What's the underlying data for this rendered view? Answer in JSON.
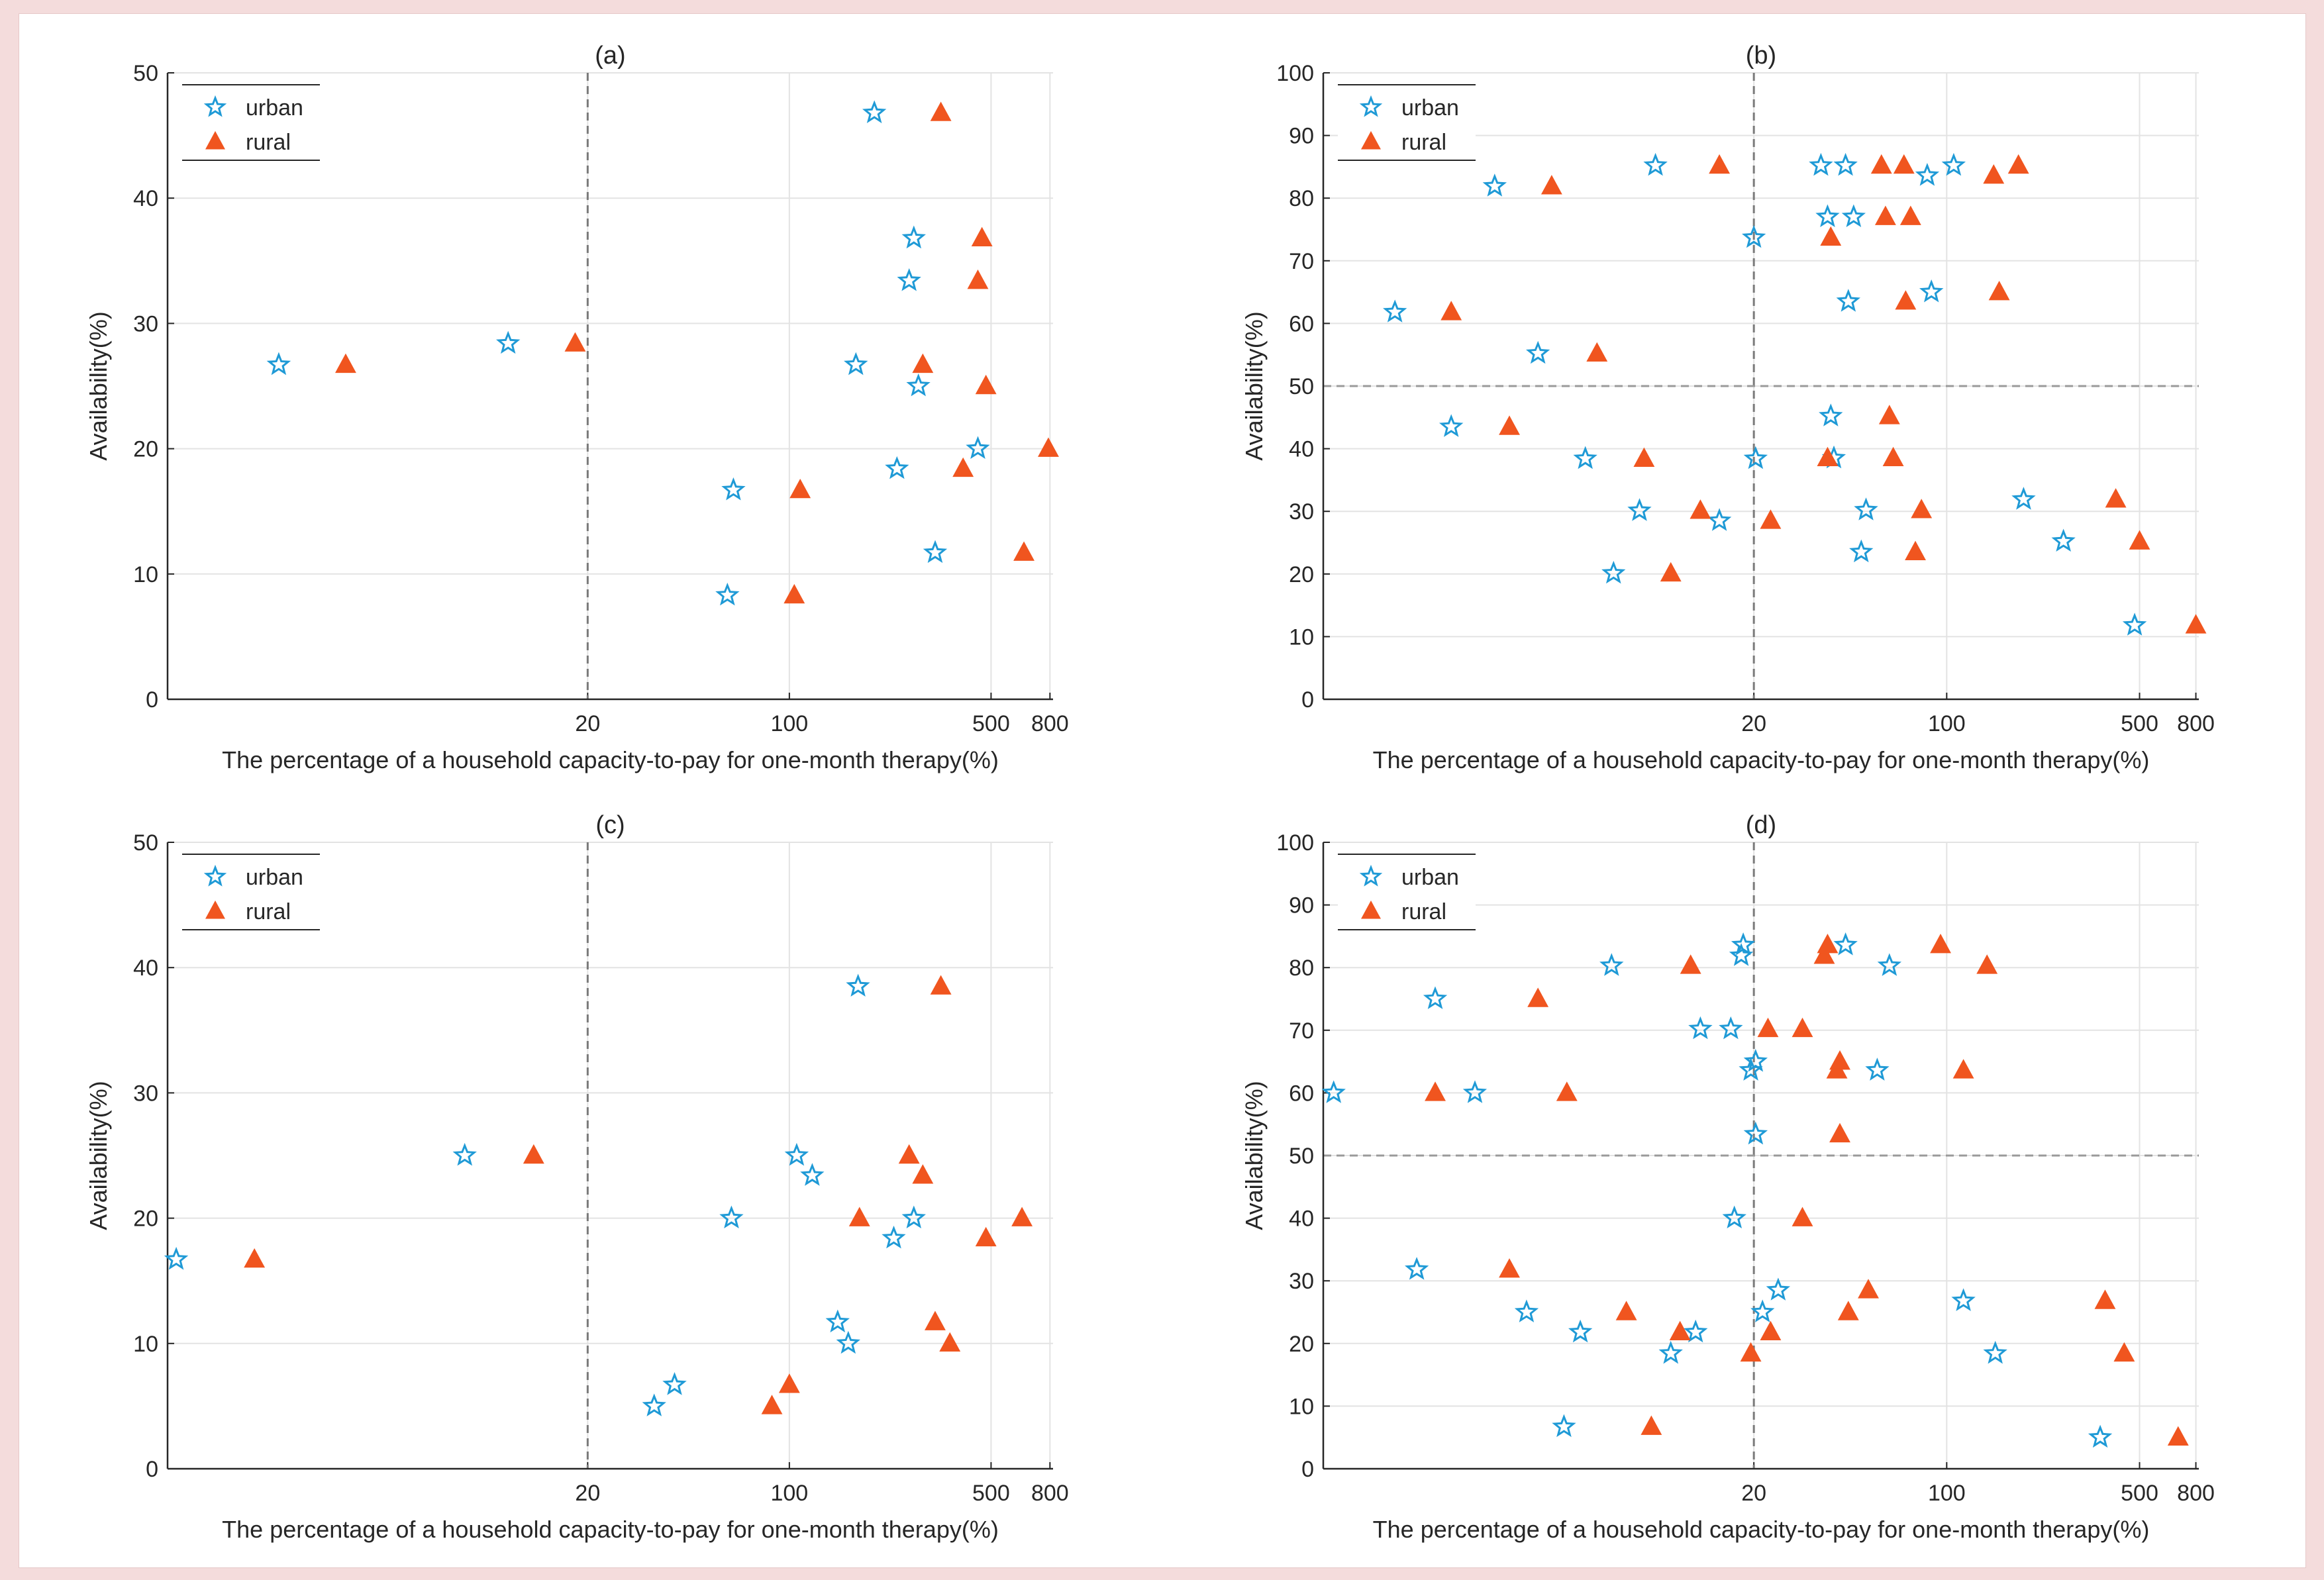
{
  "colors": {
    "urban": "#1f9ad6",
    "rural": "#f0551f",
    "grid": "#e3e3e3",
    "axis": "#262626",
    "background": "#f4dcdc"
  },
  "chart_data": [
    {
      "type": "scatter",
      "title": "(a)",
      "xlabel": "The percentage of a household capacity-to-pay for one-month therapy(%)",
      "ylabel": "Availability(%)",
      "xscale": "log",
      "xlim": [
        0.7,
        820
      ],
      "ylim": [
        0,
        50
      ],
      "xticks": [
        20,
        100,
        500,
        800
      ],
      "yticks": [
        0,
        10,
        20,
        30,
        40,
        50
      ],
      "vline": 20,
      "hline": null,
      "legend": {
        "position": "top-left",
        "entries": [
          "urban",
          "rural"
        ]
      },
      "series": [
        {
          "name": "urban",
          "marker": "star",
          "points": [
            [
              1.7,
              26.7
            ],
            [
              10.6,
              28.4
            ],
            [
              64,
              16.7
            ],
            [
              61,
              8.3
            ],
            [
              170,
              26.7
            ],
            [
              197,
              46.8
            ],
            [
              270,
              36.8
            ],
            [
              260,
              33.4
            ],
            [
              280,
              25.0
            ],
            [
              236,
              18.4
            ],
            [
              450,
              20.0
            ],
            [
              320,
              11.7
            ]
          ]
        },
        {
          "name": "rural",
          "marker": "triangle",
          "points": [
            [
              2.9,
              26.7
            ],
            [
              18.1,
              28.4
            ],
            [
              109,
              16.7
            ],
            [
              104,
              8.3
            ],
            [
              290,
              26.7
            ],
            [
              335,
              46.8
            ],
            [
              465,
              36.8
            ],
            [
              450,
              33.4
            ],
            [
              480,
              25.0
            ],
            [
              400,
              18.4
            ],
            [
              790,
              20.0
            ],
            [
              650,
              11.7
            ]
          ]
        }
      ]
    },
    {
      "type": "scatter",
      "title": "(b)",
      "xlabel": "The percentage of a household capacity-to-pay for one-month therapy(%)",
      "ylabel": "Availability(%)",
      "xscale": "log",
      "xlim": [
        0.55,
        820
      ],
      "ylim": [
        0,
        100
      ],
      "xticks": [
        20,
        100,
        500,
        800
      ],
      "yticks": [
        0,
        10,
        20,
        30,
        40,
        50,
        60,
        70,
        80,
        90,
        100
      ],
      "vline": 20,
      "hline": 50,
      "legend": {
        "position": "top-left",
        "entries": [
          "urban",
          "rural"
        ]
      },
      "series": [
        {
          "name": "urban",
          "marker": "star",
          "points": [
            [
              1.0,
              61.8
            ],
            [
              1.6,
              43.5
            ],
            [
              2.3,
              81.9
            ],
            [
              3.3,
              55.2
            ],
            [
              4.9,
              38.4
            ],
            [
              6.2,
              20.1
            ],
            [
              7.7,
              30.1
            ],
            [
              8.8,
              85.2
            ],
            [
              15.0,
              28.5
            ],
            [
              20,
              73.7
            ],
            [
              20.3,
              38.4
            ],
            [
              35,
              85.2
            ],
            [
              37,
              77.0
            ],
            [
              38,
              45.2
            ],
            [
              39,
              38.5
            ],
            [
              43,
              85.2
            ],
            [
              44,
              63.5
            ],
            [
              46,
              77.0
            ],
            [
              49,
              23.5
            ],
            [
              51,
              30.2
            ],
            [
              85,
              83.6
            ],
            [
              88,
              65.0
            ],
            [
              106,
              85.2
            ],
            [
              190,
              31.9
            ],
            [
              265,
              25.2
            ],
            [
              480,
              11.8
            ]
          ]
        },
        {
          "name": "rural",
          "marker": "triangle",
          "points": [
            [
              1.6,
              61.8
            ],
            [
              2.6,
              43.5
            ],
            [
              3.7,
              81.9
            ],
            [
              5.4,
              55.2
            ],
            [
              8.0,
              38.4
            ],
            [
              10.0,
              20.1
            ],
            [
              12.8,
              30.1
            ],
            [
              15.0,
              85.2
            ],
            [
              23,
              28.5
            ],
            [
              38,
              73.7
            ],
            [
              37,
              38.5
            ],
            [
              58,
              85.2
            ],
            [
              60,
              77.0
            ],
            [
              62,
              45.2
            ],
            [
              64,
              38.5
            ],
            [
              70,
              85.2
            ],
            [
              71,
              63.5
            ],
            [
              74,
              77.0
            ],
            [
              77,
              23.5
            ],
            [
              81,
              30.2
            ],
            [
              148,
              83.6
            ],
            [
              155,
              65.0
            ],
            [
              182,
              85.2
            ],
            [
              410,
              31.9
            ],
            [
              500,
              25.2
            ],
            [
              800,
              11.8
            ]
          ]
        }
      ]
    },
    {
      "type": "scatter",
      "title": "(c)",
      "xlabel": "The percentage of a household capacity-to-pay for one-month therapy(%)",
      "ylabel": "Availability(%)",
      "xscale": "log",
      "xlim": [
        0.7,
        820
      ],
      "ylim": [
        0,
        50
      ],
      "xticks": [
        20,
        100,
        500,
        800
      ],
      "yticks": [
        0,
        10,
        20,
        30,
        40,
        50
      ],
      "vline": 20,
      "hline": null,
      "legend": {
        "position": "top-left",
        "entries": [
          "urban",
          "rural"
        ]
      },
      "series": [
        {
          "name": "urban",
          "marker": "star",
          "points": [
            [
              0.75,
              16.7
            ],
            [
              7.5,
              25.0
            ],
            [
              63,
              20.0
            ],
            [
              34,
              5.0
            ],
            [
              40,
              6.7
            ],
            [
              106,
              25.0
            ],
            [
              120,
              23.4
            ],
            [
              147,
              11.7
            ],
            [
              160,
              10.0
            ],
            [
              173,
              38.5
            ],
            [
              230,
              18.4
            ],
            [
              270,
              20.0
            ]
          ]
        },
        {
          "name": "rural",
          "marker": "triangle",
          "points": [
            [
              1.4,
              16.7
            ],
            [
              13.0,
              25.0
            ],
            [
              175,
              20.0
            ],
            [
              87,
              5.0
            ],
            [
              100,
              6.7
            ],
            [
              260,
              25.0
            ],
            [
              290,
              23.4
            ],
            [
              320,
              11.7
            ],
            [
              360,
              10.0
            ],
            [
              335,
              38.5
            ],
            [
              480,
              18.4
            ],
            [
              640,
              20.0
            ]
          ]
        }
      ]
    },
    {
      "type": "scatter",
      "title": "(d)",
      "xlabel": "The percentage of a household capacity-to-pay for one-month therapy(%)",
      "ylabel": "Availability(%)",
      "xscale": "log",
      "xlim": [
        0.55,
        820
      ],
      "ylim": [
        0,
        100
      ],
      "xticks": [
        20,
        100,
        500,
        800
      ],
      "yticks": [
        0,
        10,
        20,
        30,
        40,
        50,
        60,
        70,
        80,
        90,
        100
      ],
      "vline": 20,
      "hline": 50,
      "legend": {
        "position": "top-left",
        "entries": [
          "urban",
          "rural"
        ]
      },
      "series": [
        {
          "name": "urban",
          "marker": "star",
          "points": [
            [
              0.6,
              60.0
            ],
            [
              1.2,
              31.8
            ],
            [
              1.4,
              75.0
            ],
            [
              1.95,
              60.0
            ],
            [
              3.0,
              25.0
            ],
            [
              4.1,
              6.7
            ],
            [
              4.7,
              21.8
            ],
            [
              6.1,
              80.3
            ],
            [
              10.0,
              18.4
            ],
            [
              12.3,
              21.8
            ],
            [
              12.8,
              70.2
            ],
            [
              17.0,
              40.0
            ],
            [
              16.5,
              70.2
            ],
            [
              18.0,
              81.9
            ],
            [
              18.3,
              83.6
            ],
            [
              19.5,
              63.6
            ],
            [
              20.3,
              65.0
            ],
            [
              20.3,
              53.4
            ],
            [
              21.5,
              25.0
            ],
            [
              24.5,
              28.5
            ],
            [
              43,
              83.6
            ],
            [
              56,
              63.6
            ],
            [
              62,
              80.3
            ],
            [
              115,
              26.8
            ],
            [
              150,
              18.4
            ],
            [
              360,
              5.0
            ]
          ]
        },
        {
          "name": "rural",
          "marker": "triangle",
          "points": [
            [
              1.4,
              60.0
            ],
            [
              2.6,
              31.8
            ],
            [
              3.3,
              75.0
            ],
            [
              4.2,
              60.0
            ],
            [
              6.9,
              25.0
            ],
            [
              8.5,
              6.7
            ],
            [
              10.8,
              21.8
            ],
            [
              11.8,
              80.3
            ],
            [
              19.5,
              18.4
            ],
            [
              23,
              21.8
            ],
            [
              22.5,
              70.2
            ],
            [
              30,
              40.0
            ],
            [
              30,
              70.2
            ],
            [
              36,
              81.9
            ],
            [
              37,
              83.6
            ],
            [
              40,
              63.6
            ],
            [
              41,
              65.0
            ],
            [
              41,
              53.4
            ],
            [
              44,
              25.0
            ],
            [
              52,
              28.5
            ],
            [
              95,
              83.6
            ],
            [
              115,
              63.6
            ],
            [
              140,
              80.3
            ],
            [
              375,
              26.8
            ],
            [
              440,
              18.4
            ],
            [
              690,
              5.0
            ]
          ]
        }
      ]
    }
  ]
}
